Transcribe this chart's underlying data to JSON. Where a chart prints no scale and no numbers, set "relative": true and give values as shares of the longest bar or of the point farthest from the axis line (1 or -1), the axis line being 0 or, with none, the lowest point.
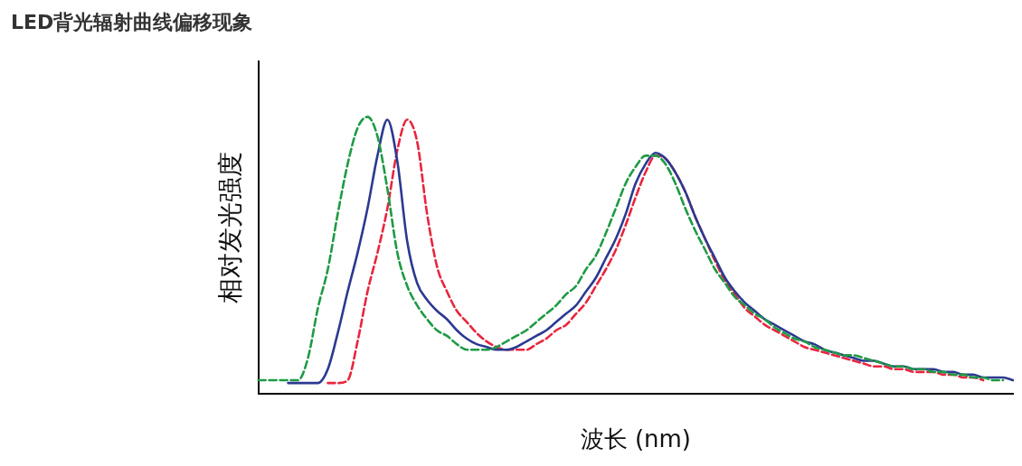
{
  "chart_data": {
    "type": "line",
    "title": "LED背光辐射曲线偏移现象",
    "xlabel": "波长 (nm)",
    "ylabel": "相对发光强度",
    "relative": true,
    "grid": false,
    "legend": false,
    "marker": "none",
    "categories": [
      null,
      null,
      null,
      null,
      null,
      null,
      null,
      null,
      null,
      null,
      null,
      null,
      null,
      null,
      null,
      null,
      null,
      null,
      null,
      null,
      null,
      null,
      null,
      null,
      null,
      null,
      null,
      null,
      null,
      null,
      null,
      null,
      null,
      null,
      null,
      null,
      null,
      null,
      null,
      null,
      null,
      null,
      null,
      null,
      null,
      null,
      null,
      null,
      null,
      null,
      null,
      null,
      null,
      null,
      null,
      null,
      null,
      null,
      null,
      null,
      null,
      null,
      null,
      null,
      null,
      null,
      null,
      null,
      null,
      null,
      null,
      null,
      null,
      null,
      null,
      null,
      null
    ],
    "series": [
      {
        "color": "#1f9a45",
        "line_style": "dashed",
        "values": [
          0.05,
          0.05,
          0.05,
          0.05,
          0.05,
          0.13,
          0.31,
          0.45,
          0.65,
          0.83,
          0.96,
          1.0,
          0.93,
          0.74,
          0.51,
          0.39,
          0.32,
          0.27,
          0.23,
          0.21,
          0.18,
          0.16,
          0.16,
          0.16,
          0.17,
          0.19,
          0.21,
          0.23,
          0.26,
          0.29,
          0.32,
          0.36,
          0.39,
          0.45,
          0.5,
          0.58,
          0.67,
          0.76,
          0.82,
          0.86,
          0.86,
          0.83,
          0.76,
          0.67,
          0.59,
          0.52,
          0.45,
          0.4,
          0.35,
          0.32,
          0.29,
          0.27,
          0.24,
          0.22,
          0.2,
          0.19,
          0.17,
          0.16,
          0.15,
          0.14,
          0.14,
          0.13,
          0.12,
          0.11,
          0.1,
          0.1,
          0.09,
          0.09,
          0.08,
          0.08,
          0.07,
          0.07,
          0.06,
          0.06,
          0.05,
          0.05,
          null
        ]
      },
      {
        "color": "#2b3990",
        "line_style": "solid",
        "values": [
          null,
          null,
          null,
          0.04,
          0.04,
          0.04,
          0.04,
          0.09,
          0.22,
          0.37,
          0.51,
          0.67,
          0.86,
          0.99,
          0.84,
          0.55,
          0.4,
          0.34,
          0.3,
          0.27,
          0.23,
          0.2,
          0.18,
          0.17,
          0.16,
          0.16,
          0.17,
          0.19,
          0.21,
          0.23,
          0.26,
          0.29,
          0.32,
          0.37,
          0.42,
          0.49,
          0.56,
          0.65,
          0.76,
          0.83,
          0.87,
          0.85,
          0.8,
          0.73,
          0.64,
          0.56,
          0.49,
          0.42,
          0.37,
          0.33,
          0.3,
          0.27,
          0.25,
          0.23,
          0.21,
          0.19,
          0.18,
          0.16,
          0.15,
          0.14,
          0.13,
          0.12,
          0.12,
          0.11,
          0.1,
          0.1,
          0.09,
          0.09,
          0.09,
          0.08,
          0.08,
          0.07,
          0.07,
          0.06,
          0.06,
          0.06,
          0.05
        ]
      },
      {
        "color": "#e8253f",
        "line_style": "dashed",
        "values": [
          null,
          null,
          null,
          null,
          null,
          null,
          null,
          0.04,
          0.04,
          0.05,
          0.19,
          0.37,
          0.51,
          0.67,
          0.88,
          0.99,
          0.91,
          0.65,
          0.46,
          0.37,
          0.3,
          0.26,
          0.22,
          0.19,
          0.17,
          0.16,
          0.16,
          0.16,
          0.18,
          0.2,
          0.23,
          0.25,
          0.29,
          0.33,
          0.39,
          0.45,
          0.52,
          0.61,
          0.71,
          0.8,
          0.86,
          0.85,
          0.8,
          0.73,
          0.64,
          0.56,
          0.48,
          0.41,
          0.36,
          0.31,
          0.28,
          0.25,
          0.23,
          0.21,
          0.19,
          0.17,
          0.16,
          0.15,
          0.14,
          0.13,
          0.12,
          0.11,
          0.1,
          0.1,
          0.09,
          0.09,
          0.08,
          0.08,
          0.08,
          0.07,
          0.07,
          0.06,
          0.06,
          0.05,
          null,
          null,
          null
        ]
      }
    ]
  }
}
